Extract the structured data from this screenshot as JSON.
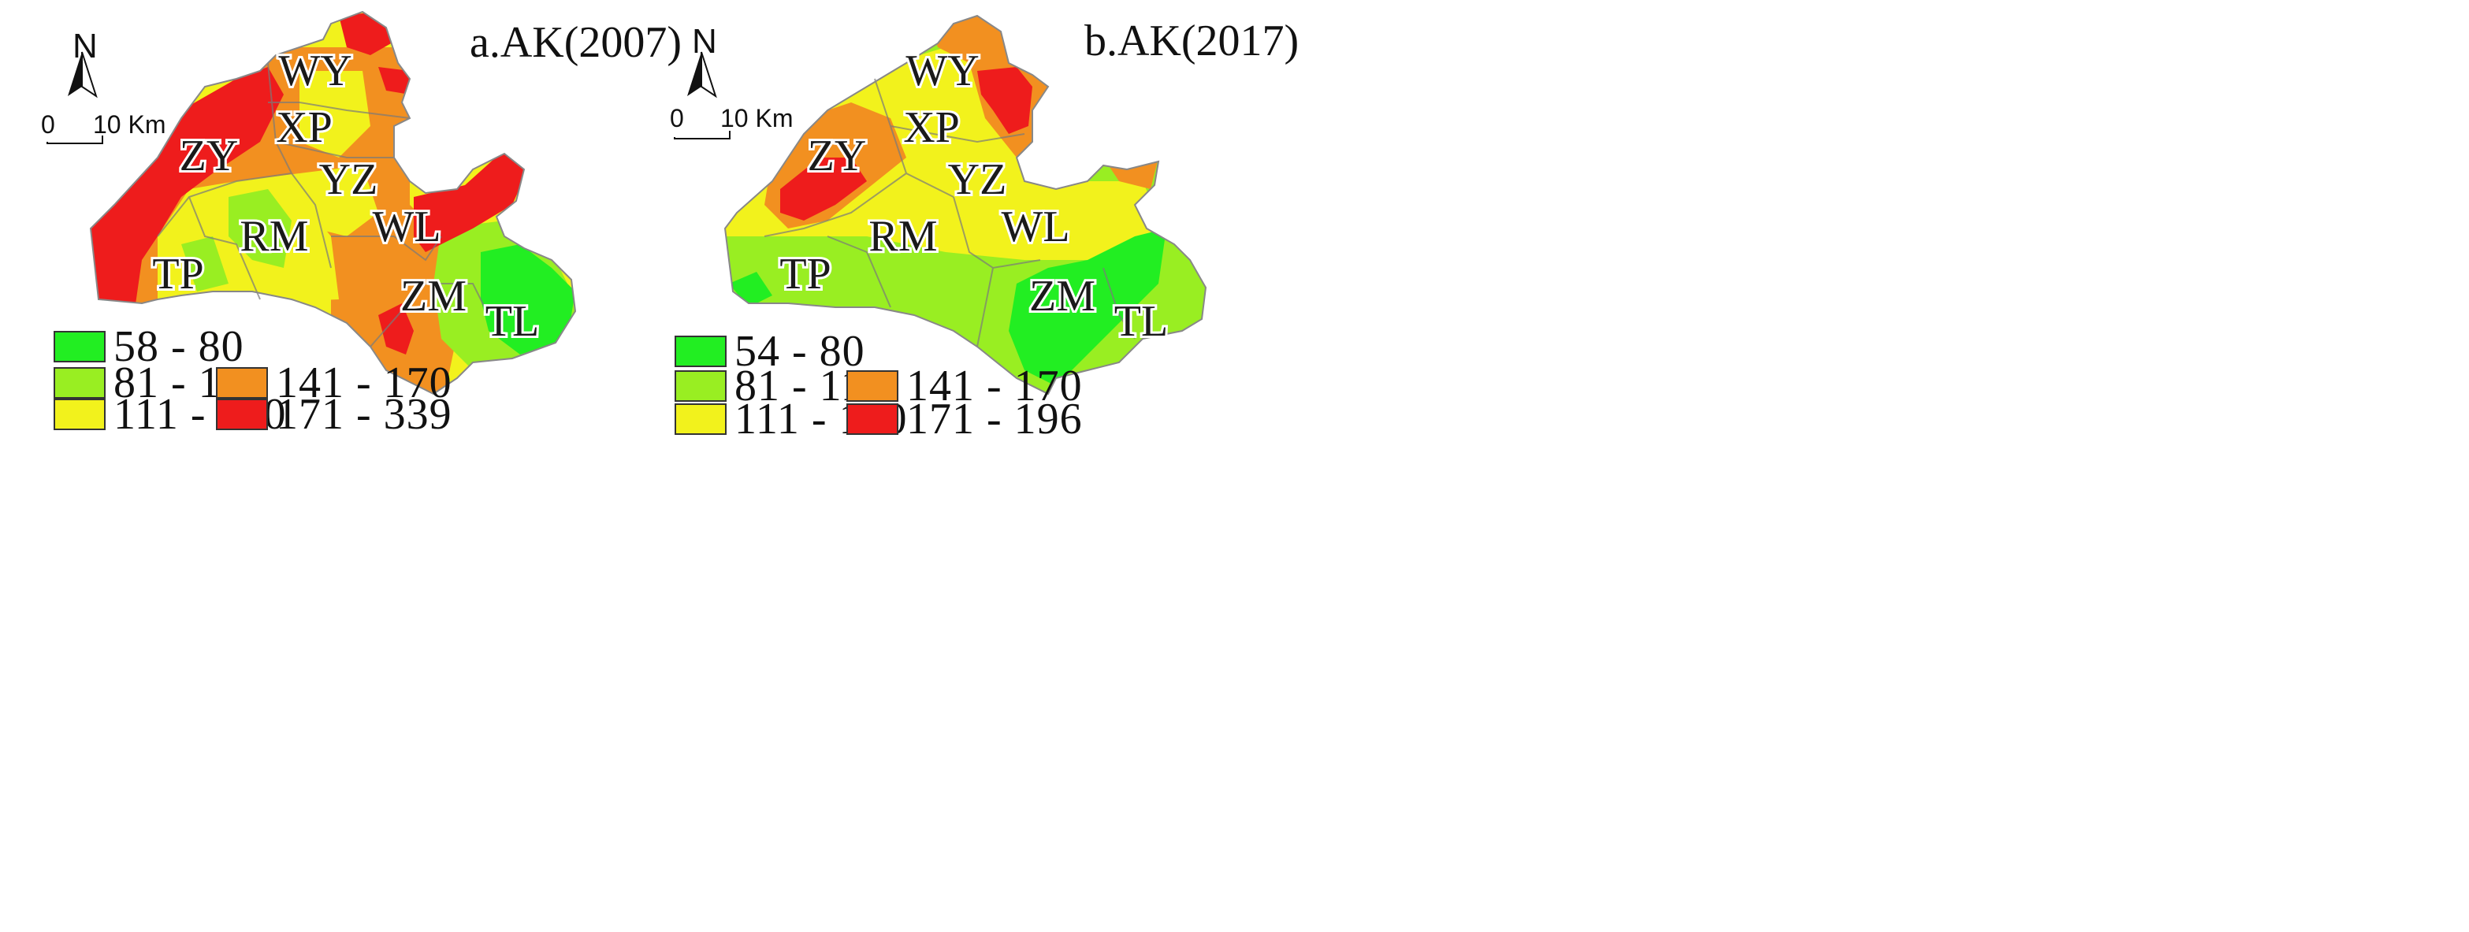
{
  "maps": [
    {
      "title": "a.AK(2007)",
      "north": "N",
      "scale": {
        "zero": "0",
        "end": "10 Km"
      },
      "regions": [
        "WY",
        "XP",
        "ZY",
        "YZ",
        "RM",
        "WL",
        "TP",
        "ZM",
        "TL"
      ],
      "legend": [
        {
          "label": "58  -  80",
          "color": "#22ee22"
        },
        {
          "label": "81  -  110",
          "color": "#99ee22"
        },
        {
          "label": "111  -  140",
          "color": "#f2f21c"
        },
        {
          "label": "141  -  170",
          "color": "#f29020"
        },
        {
          "label": "171  -  339",
          "color": "#ee1c1c"
        }
      ]
    },
    {
      "title": "b.AK(2017)",
      "north": "N",
      "scale": {
        "zero": "0",
        "end": "10 Km"
      },
      "regions": [
        "WY",
        "XP",
        "ZY",
        "YZ",
        "RM",
        "WL",
        "TP",
        "ZM",
        "TL"
      ],
      "legend": [
        {
          "label": "54  -  80",
          "color": "#22ee22"
        },
        {
          "label": "81  -  110",
          "color": "#99ee22"
        },
        {
          "label": "111  -  140",
          "color": "#f2f21c"
        },
        {
          "label": "141  -  170",
          "color": "#f29020"
        },
        {
          "label": "171  -  196",
          "color": "#ee1c1c"
        }
      ]
    }
  ]
}
